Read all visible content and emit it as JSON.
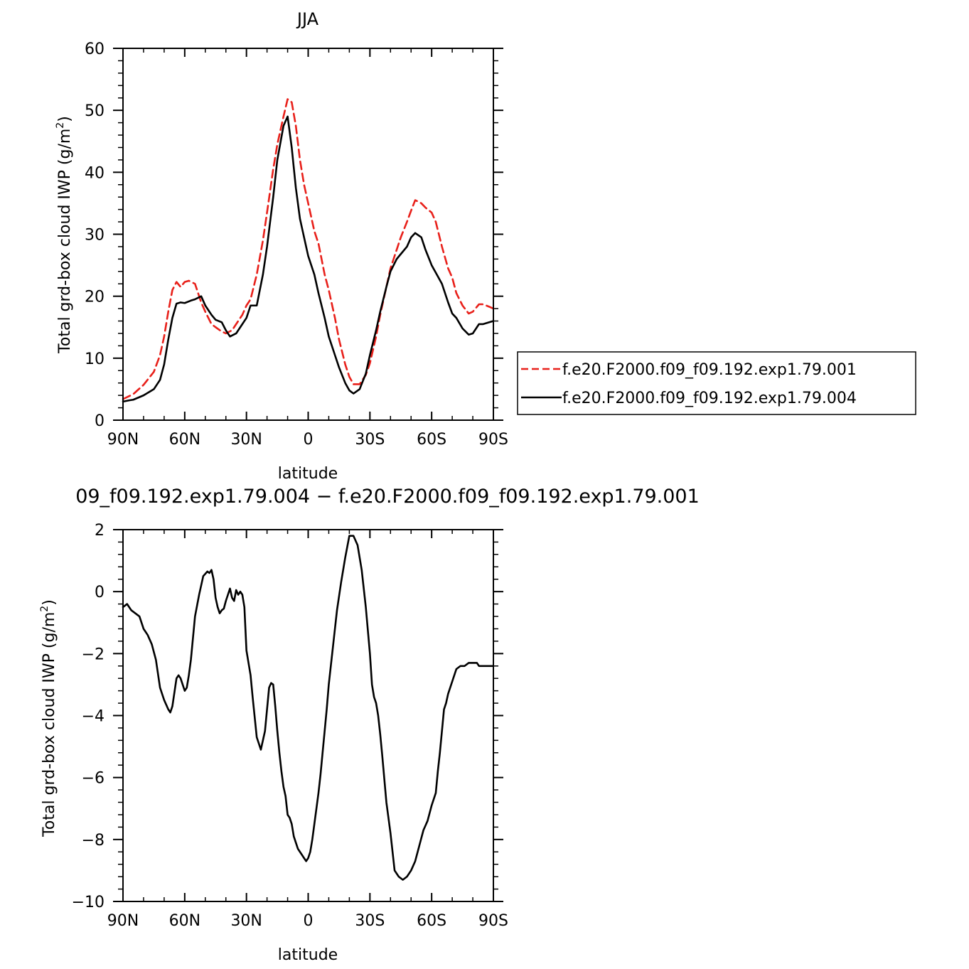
{
  "chart_data": [
    {
      "type": "line",
      "title": "JJA",
      "xlabel": "latitude",
      "ylabel": "Total grd-box cloud IWP (g/m²)",
      "ylabel_main": "Total grd-box cloud IWP (g/m",
      "ylabel_sup": "2",
      "ylabel_close": ")",
      "xlim": [
        90,
        -90
      ],
      "ylim": [
        0,
        60
      ],
      "xticks": [
        90,
        60,
        30,
        0,
        -30,
        -60,
        -90
      ],
      "xtick_labels": [
        "90N",
        "60N",
        "30N",
        "0",
        "30S",
        "60S",
        "90S"
      ],
      "yticks": [
        0,
        10,
        20,
        30,
        40,
        50,
        60
      ],
      "ytick_labels": [
        "0",
        "10",
        "20",
        "30",
        "40",
        "50",
        "60"
      ],
      "legend_position": "right",
      "series": [
        {
          "name": "f.e20.F2000.f09_f09.192.exp1.79.001",
          "color": "#e8201a",
          "dash": "dashed",
          "x": [
            90,
            85,
            80,
            75,
            72,
            70,
            68,
            66,
            64,
            62,
            60,
            58,
            55,
            52,
            50,
            47,
            45,
            42,
            40,
            37,
            35,
            32,
            30,
            28,
            25,
            22,
            20,
            17,
            15,
            12,
            10,
            8,
            6,
            4,
            2,
            0,
            -3,
            -5,
            -8,
            -10,
            -13,
            -15,
            -18,
            -20,
            -22,
            -25,
            -28,
            -30,
            -33,
            -35,
            -38,
            -40,
            -43,
            -45,
            -48,
            -50,
            -52,
            -55,
            -57,
            -60,
            -62,
            -65,
            -68,
            -70,
            -72,
            -75,
            -78,
            -80,
            -83,
            -85,
            -88,
            -90
          ],
          "y": [
            3.4,
            4.2,
            5.7,
            7.8,
            10.5,
            13.5,
            17.5,
            21.0,
            22.3,
            21.5,
            22.3,
            22.5,
            22.0,
            19.0,
            17.5,
            15.5,
            15.0,
            14.3,
            14.0,
            14.5,
            15.5,
            17.0,
            18.5,
            19.5,
            23.5,
            29.0,
            33.5,
            40.5,
            44.5,
            49.0,
            51.8,
            51.3,
            47.5,
            42.0,
            38.0,
            35.0,
            30.5,
            28.5,
            23.5,
            21.0,
            16.5,
            13.0,
            9.0,
            7.0,
            5.8,
            5.8,
            7.3,
            9.2,
            13.5,
            17.0,
            21.5,
            24.5,
            27.5,
            29.5,
            32.0,
            33.8,
            35.5,
            35.0,
            34.3,
            33.5,
            32.0,
            28.0,
            24.5,
            23.0,
            20.5,
            18.5,
            17.2,
            17.5,
            18.7,
            18.7,
            18.3,
            18.0
          ]
        },
        {
          "name": "f.e20.F2000.f09_f09.192.exp1.79.004",
          "color": "#000000",
          "dash": "solid",
          "x": [
            90,
            87,
            85,
            80,
            75,
            72,
            70,
            68,
            66,
            64,
            62,
            60,
            57,
            55,
            52,
            50,
            47,
            45,
            42,
            40,
            38,
            35,
            32,
            30,
            28,
            25,
            22,
            20,
            17,
            15,
            12,
            10,
            8,
            6,
            4,
            2,
            0,
            -3,
            -5,
            -8,
            -10,
            -13,
            -15,
            -18,
            -20,
            -22,
            -25,
            -28,
            -30,
            -33,
            -35,
            -38,
            -40,
            -43,
            -45,
            -48,
            -50,
            -52,
            -55,
            -57,
            -60,
            -62,
            -65,
            -68,
            -70,
            -72,
            -75,
            -78,
            -80,
            -83,
            -85,
            -88,
            -90
          ],
          "y": [
            3.0,
            3.2,
            3.3,
            4.0,
            5.0,
            6.5,
            9.0,
            13.0,
            16.5,
            18.8,
            19.0,
            18.9,
            19.3,
            19.5,
            20.0,
            18.5,
            17.0,
            16.2,
            15.8,
            14.5,
            13.5,
            14.0,
            15.5,
            16.5,
            18.5,
            18.5,
            23.5,
            28.0,
            36.0,
            42.0,
            47.5,
            49.0,
            44.0,
            37.5,
            32.5,
            29.5,
            26.5,
            23.5,
            20.5,
            16.5,
            13.5,
            10.5,
            8.5,
            6.0,
            4.8,
            4.3,
            5.0,
            7.5,
            10.5,
            14.5,
            17.5,
            21.5,
            24.0,
            26.0,
            26.8,
            28.0,
            29.5,
            30.2,
            29.5,
            27.5,
            25.0,
            23.8,
            22.0,
            19.0,
            17.2,
            16.5,
            14.8,
            13.8,
            14.0,
            15.5,
            15.5,
            15.8,
            16.0
          ]
        }
      ]
    },
    {
      "type": "line",
      "title": "09_f09.192.exp1.79.004 − f.e20.F2000.f09_f09.192.exp1.79.001",
      "xlabel": "latitude",
      "ylabel": "Total grd-box cloud IWP (g/m²)",
      "ylabel_main": "Total grd-box cloud IWP (g/m",
      "ylabel_sup": "2",
      "ylabel_close": ")",
      "xlim": [
        90,
        -90
      ],
      "ylim": [
        -10,
        2
      ],
      "xticks": [
        90,
        60,
        30,
        0,
        -30,
        -60,
        -90
      ],
      "xtick_labels": [
        "90N",
        "60N",
        "30N",
        "0",
        "30S",
        "60S",
        "90S"
      ],
      "yticks": [
        -10,
        -8,
        -6,
        -4,
        -2,
        0,
        2
      ],
      "ytick_labels": [
        "−10",
        "−8",
        "−6",
        "−4",
        "−2",
        "0",
        "2"
      ],
      "series": [
        {
          "color": "#000000",
          "dash": "solid",
          "x": [
            90,
            88,
            86,
            84,
            82,
            80,
            78,
            76,
            74,
            72,
            70,
            68,
            67,
            66,
            64,
            63,
            62,
            60,
            59,
            58,
            57,
            56,
            55,
            53,
            51,
            49,
            48,
            47,
            46,
            45,
            44,
            43,
            42,
            41,
            40,
            39,
            38,
            37,
            36,
            35,
            34,
            33,
            32,
            31,
            30,
            29,
            28,
            27,
            25,
            23,
            21,
            19,
            18,
            17,
            16,
            15,
            14,
            13,
            12,
            11,
            10,
            9,
            8,
            7,
            6,
            5,
            4,
            3,
            2,
            1,
            0,
            -1,
            -2,
            -3,
            -4,
            -5,
            -6,
            -7,
            -8,
            -9,
            -10,
            -12,
            -14,
            -16,
            -18,
            -20,
            -22,
            -24,
            -26,
            -28,
            -30,
            -31,
            -32,
            -33,
            -34,
            -35,
            -36,
            -38,
            -40,
            -42,
            -44,
            -46,
            -48,
            -50,
            -52,
            -54,
            -56,
            -58,
            -60,
            -62,
            -63,
            -64,
            -65,
            -66,
            -67,
            -68,
            -70,
            -72,
            -74,
            -76,
            -78,
            -80,
            -82,
            -83,
            -84,
            -85,
            -86,
            -88,
            -90
          ],
          "y": [
            -0.5,
            -0.4,
            -0.6,
            -0.7,
            -0.8,
            -1.2,
            -1.4,
            -1.7,
            -2.2,
            -3.1,
            -3.5,
            -3.8,
            -3.9,
            -3.7,
            -2.8,
            -2.7,
            -2.8,
            -3.2,
            -3.1,
            -2.7,
            -2.2,
            -1.5,
            -0.8,
            -0.1,
            0.5,
            0.65,
            0.6,
            0.7,
            0.4,
            -0.2,
            -0.5,
            -0.7,
            -0.6,
            -0.55,
            -0.3,
            -0.1,
            0.1,
            -0.2,
            -0.3,
            0.05,
            -0.1,
            0.0,
            -0.1,
            -0.5,
            -1.9,
            -2.3,
            -2.7,
            -3.4,
            -4.7,
            -5.1,
            -4.5,
            -3.1,
            -2.95,
            -3.0,
            -3.7,
            -4.5,
            -5.2,
            -5.8,
            -6.3,
            -6.6,
            -7.2,
            -7.3,
            -7.5,
            -7.9,
            -8.1,
            -8.3,
            -8.4,
            -8.5,
            -8.6,
            -8.7,
            -8.6,
            -8.4,
            -8.0,
            -7.5,
            -7.0,
            -6.5,
            -5.9,
            -5.2,
            -4.5,
            -3.8,
            -3.0,
            -1.8,
            -0.6,
            0.3,
            1.1,
            1.8,
            1.8,
            1.5,
            0.7,
            -0.5,
            -2.0,
            -3.0,
            -3.4,
            -3.6,
            -4.0,
            -4.6,
            -5.3,
            -6.8,
            -7.8,
            -9.0,
            -9.2,
            -9.3,
            -9.2,
            -9.0,
            -8.7,
            -8.2,
            -7.7,
            -7.4,
            -6.9,
            -6.5,
            -5.8,
            -5.2,
            -4.5,
            -3.8,
            -3.6,
            -3.3,
            -2.9,
            -2.5,
            -2.4,
            -2.4,
            -2.3,
            -2.3,
            -2.3,
            -2.4,
            -2.4,
            -2.4,
            -2.4,
            -2.4,
            -2.4
          ]
        }
      ]
    }
  ]
}
